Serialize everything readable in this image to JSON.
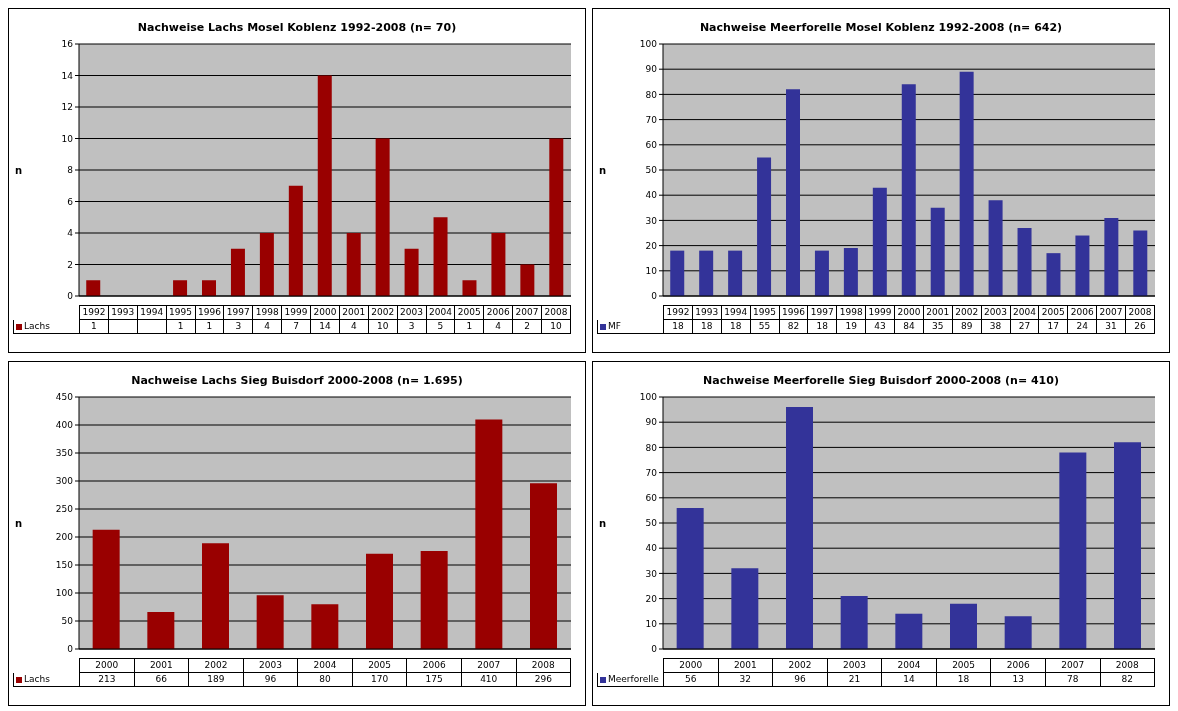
{
  "chart_data": [
    {
      "type": "bar",
      "title": "Nachweise Lachs Mosel Koblenz 1992-2008 (n= 70)",
      "ylabel": "n",
      "categories": [
        "1992",
        "1993",
        "1994",
        "1995",
        "1996",
        "1997",
        "1998",
        "1999",
        "2000",
        "2001",
        "2002",
        "2003",
        "2004",
        "2005",
        "2006",
        "2007",
        "2008"
      ],
      "series": [
        {
          "name": "Lachs",
          "color": "#990000",
          "values": [
            1,
            null,
            null,
            1,
            1,
            3,
            4,
            7,
            14,
            4,
            10,
            3,
            5,
            1,
            4,
            2,
            10
          ]
        }
      ],
      "ylim": [
        0,
        16
      ],
      "yticks": [
        0,
        2,
        4,
        6,
        8,
        10,
        12,
        14,
        16
      ],
      "grid": "y",
      "legend": "bottom",
      "data_labels": true
    },
    {
      "type": "bar",
      "title": "Nachweise Meerforelle Mosel Koblenz 1992-2008 (n= 642)",
      "ylabel": "n",
      "categories": [
        "1992",
        "1993",
        "1994",
        "1995",
        "1996",
        "1997",
        "1998",
        "1999",
        "2000",
        "2001",
        "2002",
        "2003",
        "2004",
        "2005",
        "2006",
        "2007",
        "2008"
      ],
      "series": [
        {
          "name": "MF",
          "color": "#333399",
          "values": [
            18,
            18,
            18,
            55,
            82,
            18,
            19,
            43,
            84,
            35,
            89,
            38,
            27,
            17,
            24,
            31,
            26
          ]
        }
      ],
      "ylim": [
        0,
        100
      ],
      "yticks": [
        0,
        10,
        20,
        30,
        40,
        50,
        60,
        70,
        80,
        90,
        100
      ],
      "grid": "y",
      "legend": "bottom",
      "data_labels": true
    },
    {
      "type": "bar",
      "title": "Nachweise Lachs Sieg Buisdorf 2000-2008 (n= 1.695)",
      "ylabel": "n",
      "categories": [
        "2000",
        "2001",
        "2002",
        "2003",
        "2004",
        "2005",
        "2006",
        "2007",
        "2008"
      ],
      "series": [
        {
          "name": "Lachs",
          "color": "#990000",
          "values": [
            213,
            66,
            189,
            96,
            80,
            170,
            175,
            410,
            296
          ]
        }
      ],
      "ylim": [
        0,
        450
      ],
      "yticks": [
        0,
        50,
        100,
        150,
        200,
        250,
        300,
        350,
        400,
        450
      ],
      "grid": "y",
      "legend": "bottom",
      "data_labels": true
    },
    {
      "type": "bar",
      "title": "Nachweise Meerforelle Sieg Buisdorf 2000-2008 (n= 410)",
      "ylabel": "n",
      "categories": [
        "2000",
        "2001",
        "2002",
        "2003",
        "2004",
        "2005",
        "2006",
        "2007",
        "2008"
      ],
      "series": [
        {
          "name": "Meerforelle",
          "color": "#333399",
          "values": [
            56,
            32,
            96,
            21,
            14,
            18,
            13,
            78,
            82
          ]
        }
      ],
      "ylim": [
        0,
        100
      ],
      "yticks": [
        0,
        10,
        20,
        30,
        40,
        50,
        60,
        70,
        80,
        90,
        100
      ],
      "grid": "y",
      "legend": "bottom",
      "data_labels": true
    }
  ]
}
